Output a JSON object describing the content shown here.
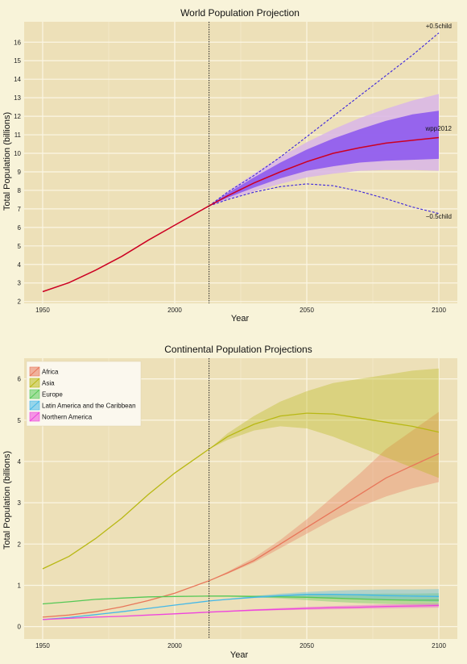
{
  "chart_data": [
    {
      "type": "line",
      "title": "World Population Projection",
      "xlabel": "Year",
      "ylabel": "Total Population (billions)",
      "xlim": [
        1943,
        2107
      ],
      "ylim": [
        1.9,
        17.1
      ],
      "xticks": [
        1950,
        2000,
        2050,
        2100
      ],
      "yticks": [
        2,
        3,
        4,
        5,
        6,
        7,
        8,
        9,
        10,
        11,
        12,
        13,
        14,
        15,
        16
      ],
      "projection_start": 2013,
      "grid": true,
      "colors": {
        "median": "#cc0022",
        "scenario": "#3a22dd",
        "band80": "#8a55ee",
        "band95": "#d8b5e8"
      },
      "series": [
        {
          "name": "wpp2012",
          "x": [
            1950,
            1960,
            1970,
            1980,
            1990,
            2000,
            2013,
            2020,
            2030,
            2040,
            2050,
            2060,
            2070,
            2080,
            2090,
            2100
          ],
          "y": [
            2.53,
            3.02,
            3.69,
            4.44,
            5.31,
            6.12,
            7.16,
            7.7,
            8.4,
            9.0,
            9.55,
            10.0,
            10.3,
            10.55,
            10.7,
            10.85
          ]
        },
        {
          "name": "+0.5child",
          "x": [
            2013,
            2020,
            2030,
            2040,
            2050,
            2060,
            2070,
            2080,
            2090,
            2100
          ],
          "y": [
            7.16,
            7.9,
            8.8,
            9.8,
            10.9,
            12.0,
            13.1,
            14.2,
            15.3,
            16.5
          ]
        },
        {
          "name": "−0.5child",
          "x": [
            2013,
            2020,
            2030,
            2040,
            2050,
            2060,
            2070,
            2080,
            2090,
            2100
          ],
          "y": [
            7.16,
            7.5,
            7.9,
            8.2,
            8.35,
            8.25,
            7.95,
            7.55,
            7.1,
            6.75
          ]
        }
      ],
      "bands": [
        {
          "level": 95,
          "x": [
            2013,
            2020,
            2030,
            2040,
            2050,
            2060,
            2070,
            2080,
            2090,
            2100
          ],
          "lower": [
            7.16,
            7.5,
            7.95,
            8.35,
            8.7,
            8.9,
            9.05,
            9.1,
            9.1,
            9.05
          ],
          "upper": [
            7.16,
            7.95,
            8.9,
            9.8,
            10.6,
            11.3,
            11.9,
            12.4,
            12.85,
            13.2
          ]
        },
        {
          "level": 80,
          "x": [
            2013,
            2020,
            2030,
            2040,
            2050,
            2060,
            2070,
            2080,
            2090,
            2100
          ],
          "lower": [
            7.16,
            7.6,
            8.15,
            8.65,
            9.05,
            9.3,
            9.5,
            9.6,
            9.65,
            9.7
          ],
          "upper": [
            7.16,
            7.85,
            8.7,
            9.5,
            10.2,
            10.8,
            11.3,
            11.75,
            12.1,
            12.3
          ]
        }
      ]
    },
    {
      "type": "line",
      "title": "Continental Population Projections",
      "xlabel": "Year",
      "ylabel": "Total Population (billions)",
      "xlim": [
        1943,
        2107
      ],
      "ylim": [
        -0.3,
        6.5
      ],
      "xticks": [
        1950,
        2000,
        2050,
        2100
      ],
      "yticks": [
        0,
        1,
        2,
        3,
        4,
        5,
        6
      ],
      "projection_start": 2013,
      "grid": true,
      "legend_position": "top-left",
      "series": [
        {
          "name": "Africa",
          "color": "#e8765a",
          "x": [
            1950,
            1960,
            1970,
            1980,
            1990,
            2000,
            2013,
            2020,
            2030,
            2040,
            2050,
            2060,
            2070,
            2080,
            2090,
            2100
          ],
          "y": [
            0.23,
            0.28,
            0.36,
            0.48,
            0.63,
            0.81,
            1.11,
            1.3,
            1.6,
            2.0,
            2.4,
            2.8,
            3.2,
            3.6,
            3.9,
            4.19
          ],
          "lower95": [
            null,
            null,
            null,
            null,
            null,
            null,
            1.11,
            1.28,
            1.55,
            1.9,
            2.25,
            2.6,
            2.9,
            3.15,
            3.35,
            3.5
          ],
          "upper95": [
            null,
            null,
            null,
            null,
            null,
            null,
            1.11,
            1.33,
            1.67,
            2.1,
            2.6,
            3.15,
            3.7,
            4.3,
            4.75,
            5.2
          ]
        },
        {
          "name": "Asia",
          "color": "#b8b814",
          "x": [
            1950,
            1960,
            1970,
            1980,
            1990,
            2000,
            2013,
            2020,
            2030,
            2040,
            2050,
            2060,
            2070,
            2080,
            2090,
            2100
          ],
          "y": [
            1.4,
            1.7,
            2.13,
            2.63,
            3.2,
            3.72,
            4.3,
            4.6,
            4.9,
            5.1,
            5.17,
            5.15,
            5.05,
            4.95,
            4.85,
            4.71
          ],
          "lower95": [
            null,
            null,
            null,
            null,
            null,
            null,
            4.3,
            4.52,
            4.75,
            4.85,
            4.8,
            4.6,
            4.35,
            4.1,
            3.85,
            3.6
          ],
          "upper95": [
            null,
            null,
            null,
            null,
            null,
            null,
            4.3,
            4.68,
            5.1,
            5.45,
            5.7,
            5.9,
            6.0,
            6.1,
            6.2,
            6.25
          ]
        },
        {
          "name": "Europe",
          "color": "#55c855",
          "x": [
            1950,
            1960,
            1970,
            1980,
            1990,
            2000,
            2013,
            2020,
            2030,
            2040,
            2050,
            2060,
            2070,
            2080,
            2090,
            2100
          ],
          "y": [
            0.55,
            0.6,
            0.66,
            0.69,
            0.72,
            0.73,
            0.74,
            0.74,
            0.73,
            0.72,
            0.71,
            0.69,
            0.67,
            0.65,
            0.64,
            0.64
          ],
          "lower95": [
            null,
            null,
            null,
            null,
            null,
            null,
            0.74,
            0.73,
            0.71,
            0.68,
            0.64,
            0.6,
            0.57,
            0.55,
            0.53,
            0.52
          ],
          "upper95": [
            null,
            null,
            null,
            null,
            null,
            null,
            0.74,
            0.75,
            0.75,
            0.76,
            0.77,
            0.78,
            0.79,
            0.8,
            0.8,
            0.81
          ]
        },
        {
          "name": "Latin America and the Caribbean",
          "color": "#44b8e8",
          "x": [
            1950,
            1960,
            1970,
            1980,
            1990,
            2000,
            2013,
            2020,
            2030,
            2040,
            2050,
            2060,
            2070,
            2080,
            2090,
            2100
          ],
          "y": [
            0.17,
            0.22,
            0.29,
            0.36,
            0.44,
            0.52,
            0.62,
            0.66,
            0.71,
            0.75,
            0.78,
            0.78,
            0.77,
            0.75,
            0.74,
            0.73
          ],
          "lower95": [
            null,
            null,
            null,
            null,
            null,
            null,
            0.62,
            0.65,
            0.69,
            0.71,
            0.72,
            0.7,
            0.68,
            0.65,
            0.62,
            0.6
          ],
          "upper95": [
            null,
            null,
            null,
            null,
            null,
            null,
            0.62,
            0.67,
            0.74,
            0.8,
            0.84,
            0.87,
            0.89,
            0.9,
            0.9,
            0.91
          ]
        },
        {
          "name": "Northern America",
          "color": "#ee44dd",
          "x": [
            1950,
            1960,
            1970,
            1980,
            1990,
            2000,
            2013,
            2020,
            2030,
            2040,
            2050,
            2060,
            2070,
            2080,
            2090,
            2100
          ],
          "y": [
            0.17,
            0.2,
            0.23,
            0.25,
            0.28,
            0.31,
            0.35,
            0.37,
            0.4,
            0.42,
            0.44,
            0.46,
            0.47,
            0.49,
            0.5,
            0.51
          ],
          "lower95": [
            null,
            null,
            null,
            null,
            null,
            null,
            0.35,
            0.36,
            0.38,
            0.4,
            0.41,
            0.42,
            0.43,
            0.44,
            0.45,
            0.46
          ],
          "upper95": [
            null,
            null,
            null,
            null,
            null,
            null,
            0.35,
            0.38,
            0.42,
            0.45,
            0.48,
            0.5,
            0.52,
            0.54,
            0.55,
            0.56
          ]
        }
      ]
    }
  ]
}
